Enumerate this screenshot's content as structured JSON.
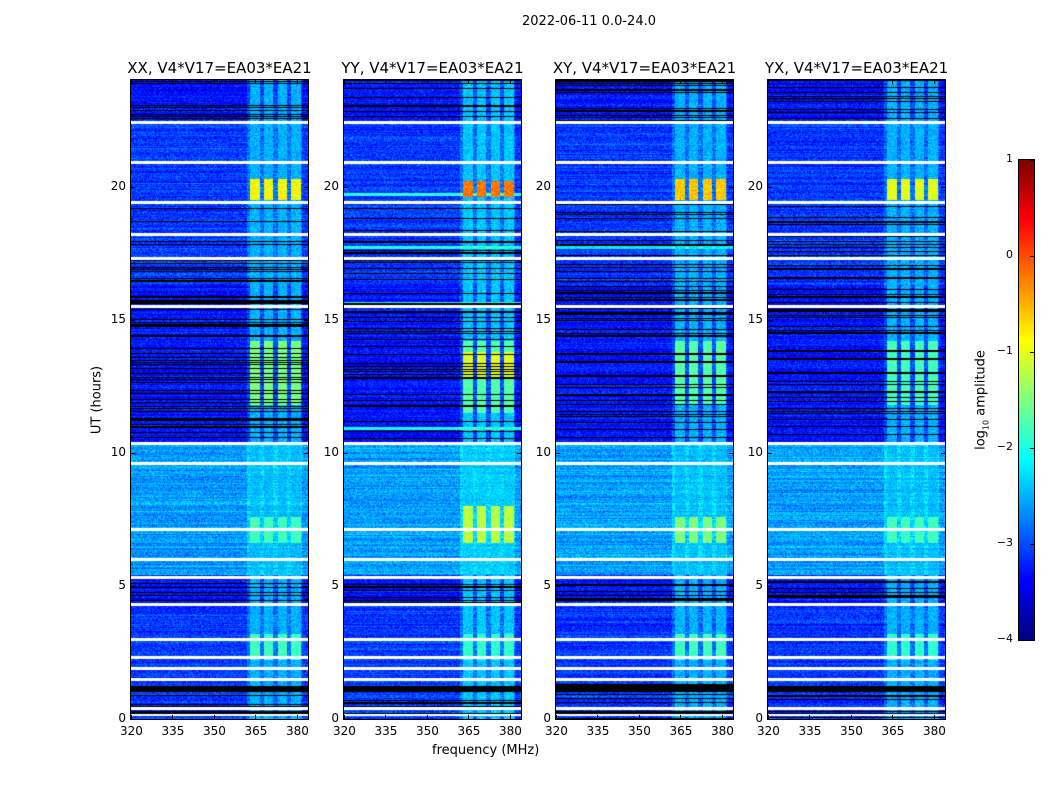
{
  "chart_data": {
    "type": "heatmap",
    "suptitle": "2022-06-11 0.0-24.0",
    "xlabel": "frequency (MHz)",
    "ylabel": "UT (hours)",
    "xlim": [
      320,
      384
    ],
    "ylim": [
      0,
      24
    ],
    "xticks": [
      320,
      335,
      350,
      365,
      380
    ],
    "yticks": [
      0,
      5,
      10,
      15,
      20
    ],
    "colorbar": {
      "label_parts": [
        "log",
        "10",
        " amplitude"
      ],
      "range": [
        -4,
        1
      ],
      "ticks": [
        1,
        0,
        -1,
        -2,
        -3,
        -4
      ],
      "tick_labels": [
        "1",
        "0",
        "−1",
        "−2",
        "−3",
        "−4"
      ],
      "colormap": "jet"
    },
    "background_levels": [
      {
        "t0": 0,
        "t1": 4.3,
        "level": -3.1
      },
      {
        "t0": 4.3,
        "t1": 5.4,
        "level": -3.3
      },
      {
        "t0": 5.4,
        "t1": 10.4,
        "level": -2.6
      },
      {
        "t0": 10.4,
        "t1": 16.3,
        "level": -3.3
      },
      {
        "t0": 16.3,
        "t1": 22.4,
        "level": -3.1
      },
      {
        "t0": 22.4,
        "t1": 24,
        "level": -3.3
      }
    ],
    "flagged_hours": [
      0.15,
      0.4,
      1.5,
      1.9,
      2.3,
      3.0,
      4.3,
      5.3,
      6.0,
      7.1,
      9.6,
      10.35,
      15.5,
      17.3,
      18.2,
      19.4,
      20.9,
      22.4
    ],
    "dropout_hours": [
      [
        1.0,
        1.25
      ]
    ],
    "striated_hours": [
      [
        0,
        1.4
      ],
      [
        4.2,
        5.4
      ],
      [
        10.4,
        16.3
      ],
      [
        16.4,
        19.4
      ],
      [
        22.4,
        24
      ]
    ],
    "rfi_subbands_mhz": [
      [
        363,
        366.5
      ],
      [
        368,
        371.5
      ],
      [
        373,
        376.5
      ],
      [
        378,
        381.5
      ]
    ],
    "panels": [
      {
        "title": "XX, V4*V17=EA03*EA21",
        "rfi": [
          {
            "t0": 0,
            "t1": 24,
            "level": -2.5
          },
          {
            "t0": 19.5,
            "t1": 20.3,
            "level": -0.9
          },
          {
            "t0": 11.8,
            "t1": 14.2,
            "level": -1.5
          },
          {
            "t0": 6.6,
            "t1": 7.6,
            "level": -1.8
          },
          {
            "t0": 2.2,
            "t1": 3.2,
            "level": -1.8
          }
        ],
        "bright_rows": []
      },
      {
        "title": "YY, V4*V17=EA03*EA21",
        "rfi": [
          {
            "t0": 0,
            "t1": 24,
            "level": -2.4
          },
          {
            "t0": 19.6,
            "t1": 20.2,
            "level": -0.2
          },
          {
            "t0": 12.8,
            "t1": 13.8,
            "level": -1.0
          },
          {
            "t0": 11.5,
            "t1": 14.2,
            "level": -1.7
          },
          {
            "t0": 6.6,
            "t1": 8.0,
            "level": -1.2
          },
          {
            "t0": 2.2,
            "t1": 3.2,
            "level": -1.9
          }
        ],
        "bright_rows": [
          {
            "h": 19.7,
            "level": -1.9
          },
          {
            "h": 17.7,
            "level": -2.0
          },
          {
            "h": 10.9,
            "level": -2.0
          },
          {
            "h": 15.6,
            "level": -2.0
          }
        ]
      },
      {
        "title": "XY, V4*V17=EA03*EA21",
        "rfi": [
          {
            "t0": 0,
            "t1": 24,
            "level": -2.5
          },
          {
            "t0": 19.5,
            "t1": 20.3,
            "level": -0.6
          },
          {
            "t0": 11.8,
            "t1": 14.2,
            "level": -1.7
          },
          {
            "t0": 6.6,
            "t1": 7.6,
            "level": -1.5
          },
          {
            "t0": 2.2,
            "t1": 3.2,
            "level": -1.8
          }
        ],
        "bright_rows": [
          {
            "h": 17.7,
            "level": -2.2
          }
        ]
      },
      {
        "title": "YX, V4*V17=EA03*EA21",
        "rfi": [
          {
            "t0": 0,
            "t1": 24,
            "level": -2.5
          },
          {
            "t0": 19.5,
            "t1": 20.3,
            "level": -1.0
          },
          {
            "t0": 11.8,
            "t1": 14.2,
            "level": -1.8
          },
          {
            "t0": 6.6,
            "t1": 7.6,
            "level": -1.8
          },
          {
            "t0": 2.2,
            "t1": 3.2,
            "level": -1.9
          }
        ],
        "bright_rows": []
      }
    ]
  }
}
